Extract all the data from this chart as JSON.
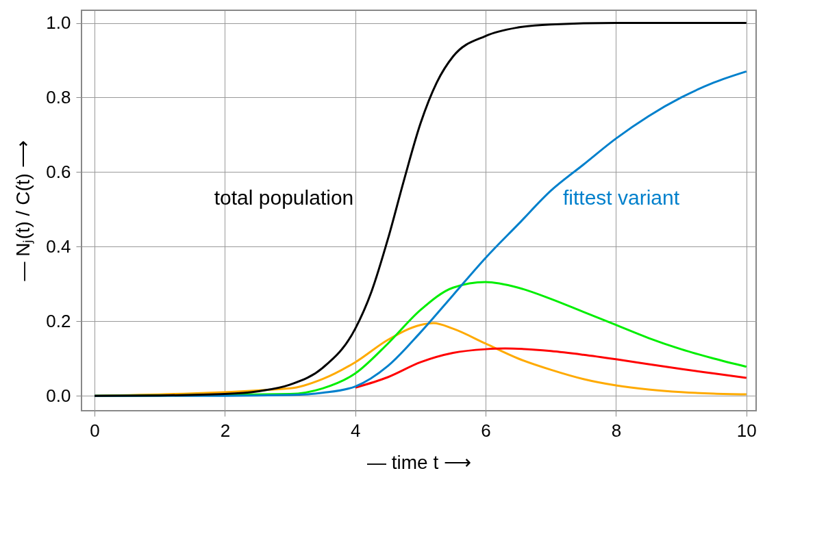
{
  "chart_data": {
    "type": "line",
    "xlabel": "— time  t ⟶",
    "ylabel": "— Nⱼ(t) / C(t) ⟶",
    "xlim": [
      -0.2,
      10.15
    ],
    "ylim": [
      -0.04,
      1.034
    ],
    "xticks": [
      0,
      2,
      4,
      6,
      8,
      10
    ],
    "yticks": [
      {
        "value": 0,
        "label": "0.0"
      },
      0.2,
      0.4,
      0.6,
      0.8,
      {
        "value": 1,
        "label": "1.0"
      }
    ],
    "grid": true,
    "legend": false,
    "marker": "none",
    "line_style": "solid",
    "series": [
      {
        "color": "#ffaa00",
        "x": [
          0,
          3,
          3.5,
          4,
          4.5,
          5,
          5.2,
          5.5,
          6,
          6.5,
          7,
          7.5,
          8,
          8.5,
          9,
          9.5,
          10
        ],
        "values": [
          0,
          0.02,
          0.045,
          0.09,
          0.15,
          0.19,
          0.195,
          0.18,
          0.14,
          0.1,
          0.07,
          0.045,
          0.028,
          0.017,
          0.01,
          0.006,
          0.004
        ]
      },
      {
        "color": "#00ee00",
        "x": [
          0,
          3,
          3.5,
          4,
          4.5,
          5,
          5.5,
          6,
          6.5,
          7,
          7.5,
          8,
          8.5,
          9,
          9.5,
          10
        ],
        "values": [
          0,
          0.005,
          0.02,
          0.06,
          0.14,
          0.23,
          0.29,
          0.305,
          0.29,
          0.26,
          0.225,
          0.19,
          0.155,
          0.125,
          0.1,
          0.078
        ]
      },
      {
        "color": "#ff0000",
        "x": [
          4,
          4.5,
          5,
          5.5,
          6,
          6.3,
          7,
          7.5,
          8,
          8.5,
          9,
          9.5,
          10
        ],
        "values": [
          0.022,
          0.05,
          0.09,
          0.115,
          0.125,
          0.127,
          0.12,
          0.11,
          0.098,
          0.085,
          0.072,
          0.06,
          0.048
        ]
      },
      {
        "color": "#0080cc",
        "x": [
          0,
          2,
          3,
          3.5,
          4,
          4.5,
          5,
          5.5,
          6,
          6.5,
          7,
          7.5,
          8,
          8.5,
          9,
          9.5,
          10
        ],
        "values": [
          0,
          0,
          0.002,
          0.008,
          0.025,
          0.08,
          0.17,
          0.27,
          0.37,
          0.46,
          0.55,
          0.62,
          0.69,
          0.75,
          0.8,
          0.84,
          0.87
        ]
      },
      {
        "color": "#000000",
        "x": [
          0,
          1,
          2,
          2.5,
          3,
          3.5,
          4,
          4.25,
          4.5,
          4.75,
          5,
          5.25,
          5.5,
          6,
          6.5,
          7,
          8,
          10
        ],
        "values": [
          0,
          0.001,
          0.005,
          0.012,
          0.03,
          0.075,
          0.18,
          0.28,
          0.42,
          0.58,
          0.73,
          0.84,
          0.91,
          0.965,
          0.988,
          0.996,
          1.0,
          1.0
        ]
      }
    ],
    "annotations": [
      "total population",
      "fittest variant"
    ]
  }
}
